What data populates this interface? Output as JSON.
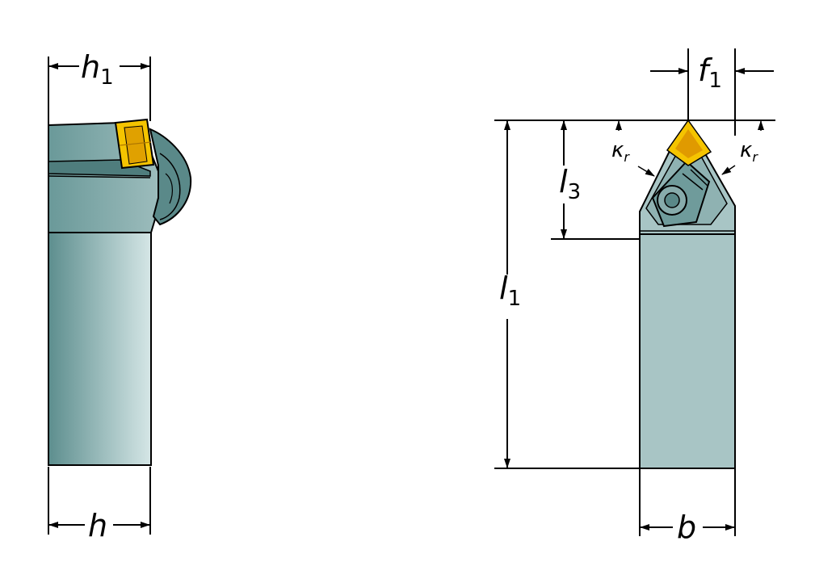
{
  "side_view": {
    "h1_label": "h",
    "h1_sub": "1",
    "h_label": "h"
  },
  "front_view": {
    "f1_label": "f",
    "f1_sub": "1",
    "l3_label": "l",
    "l3_sub": "3",
    "l1_label": "l",
    "l1_sub": "1",
    "b_label": "b",
    "kr_left_label": "κ",
    "kr_left_sub": "r",
    "kr_right_label": "κ",
    "kr_right_sub": "r"
  },
  "colors": {
    "shank_dark": "#5f8f8f",
    "shank_light": "#cfe0e0",
    "shank_front": "#a9c6c6",
    "insert_yellow": "#f5c400",
    "insert_orange": "#e09a00",
    "line": "#000000"
  }
}
